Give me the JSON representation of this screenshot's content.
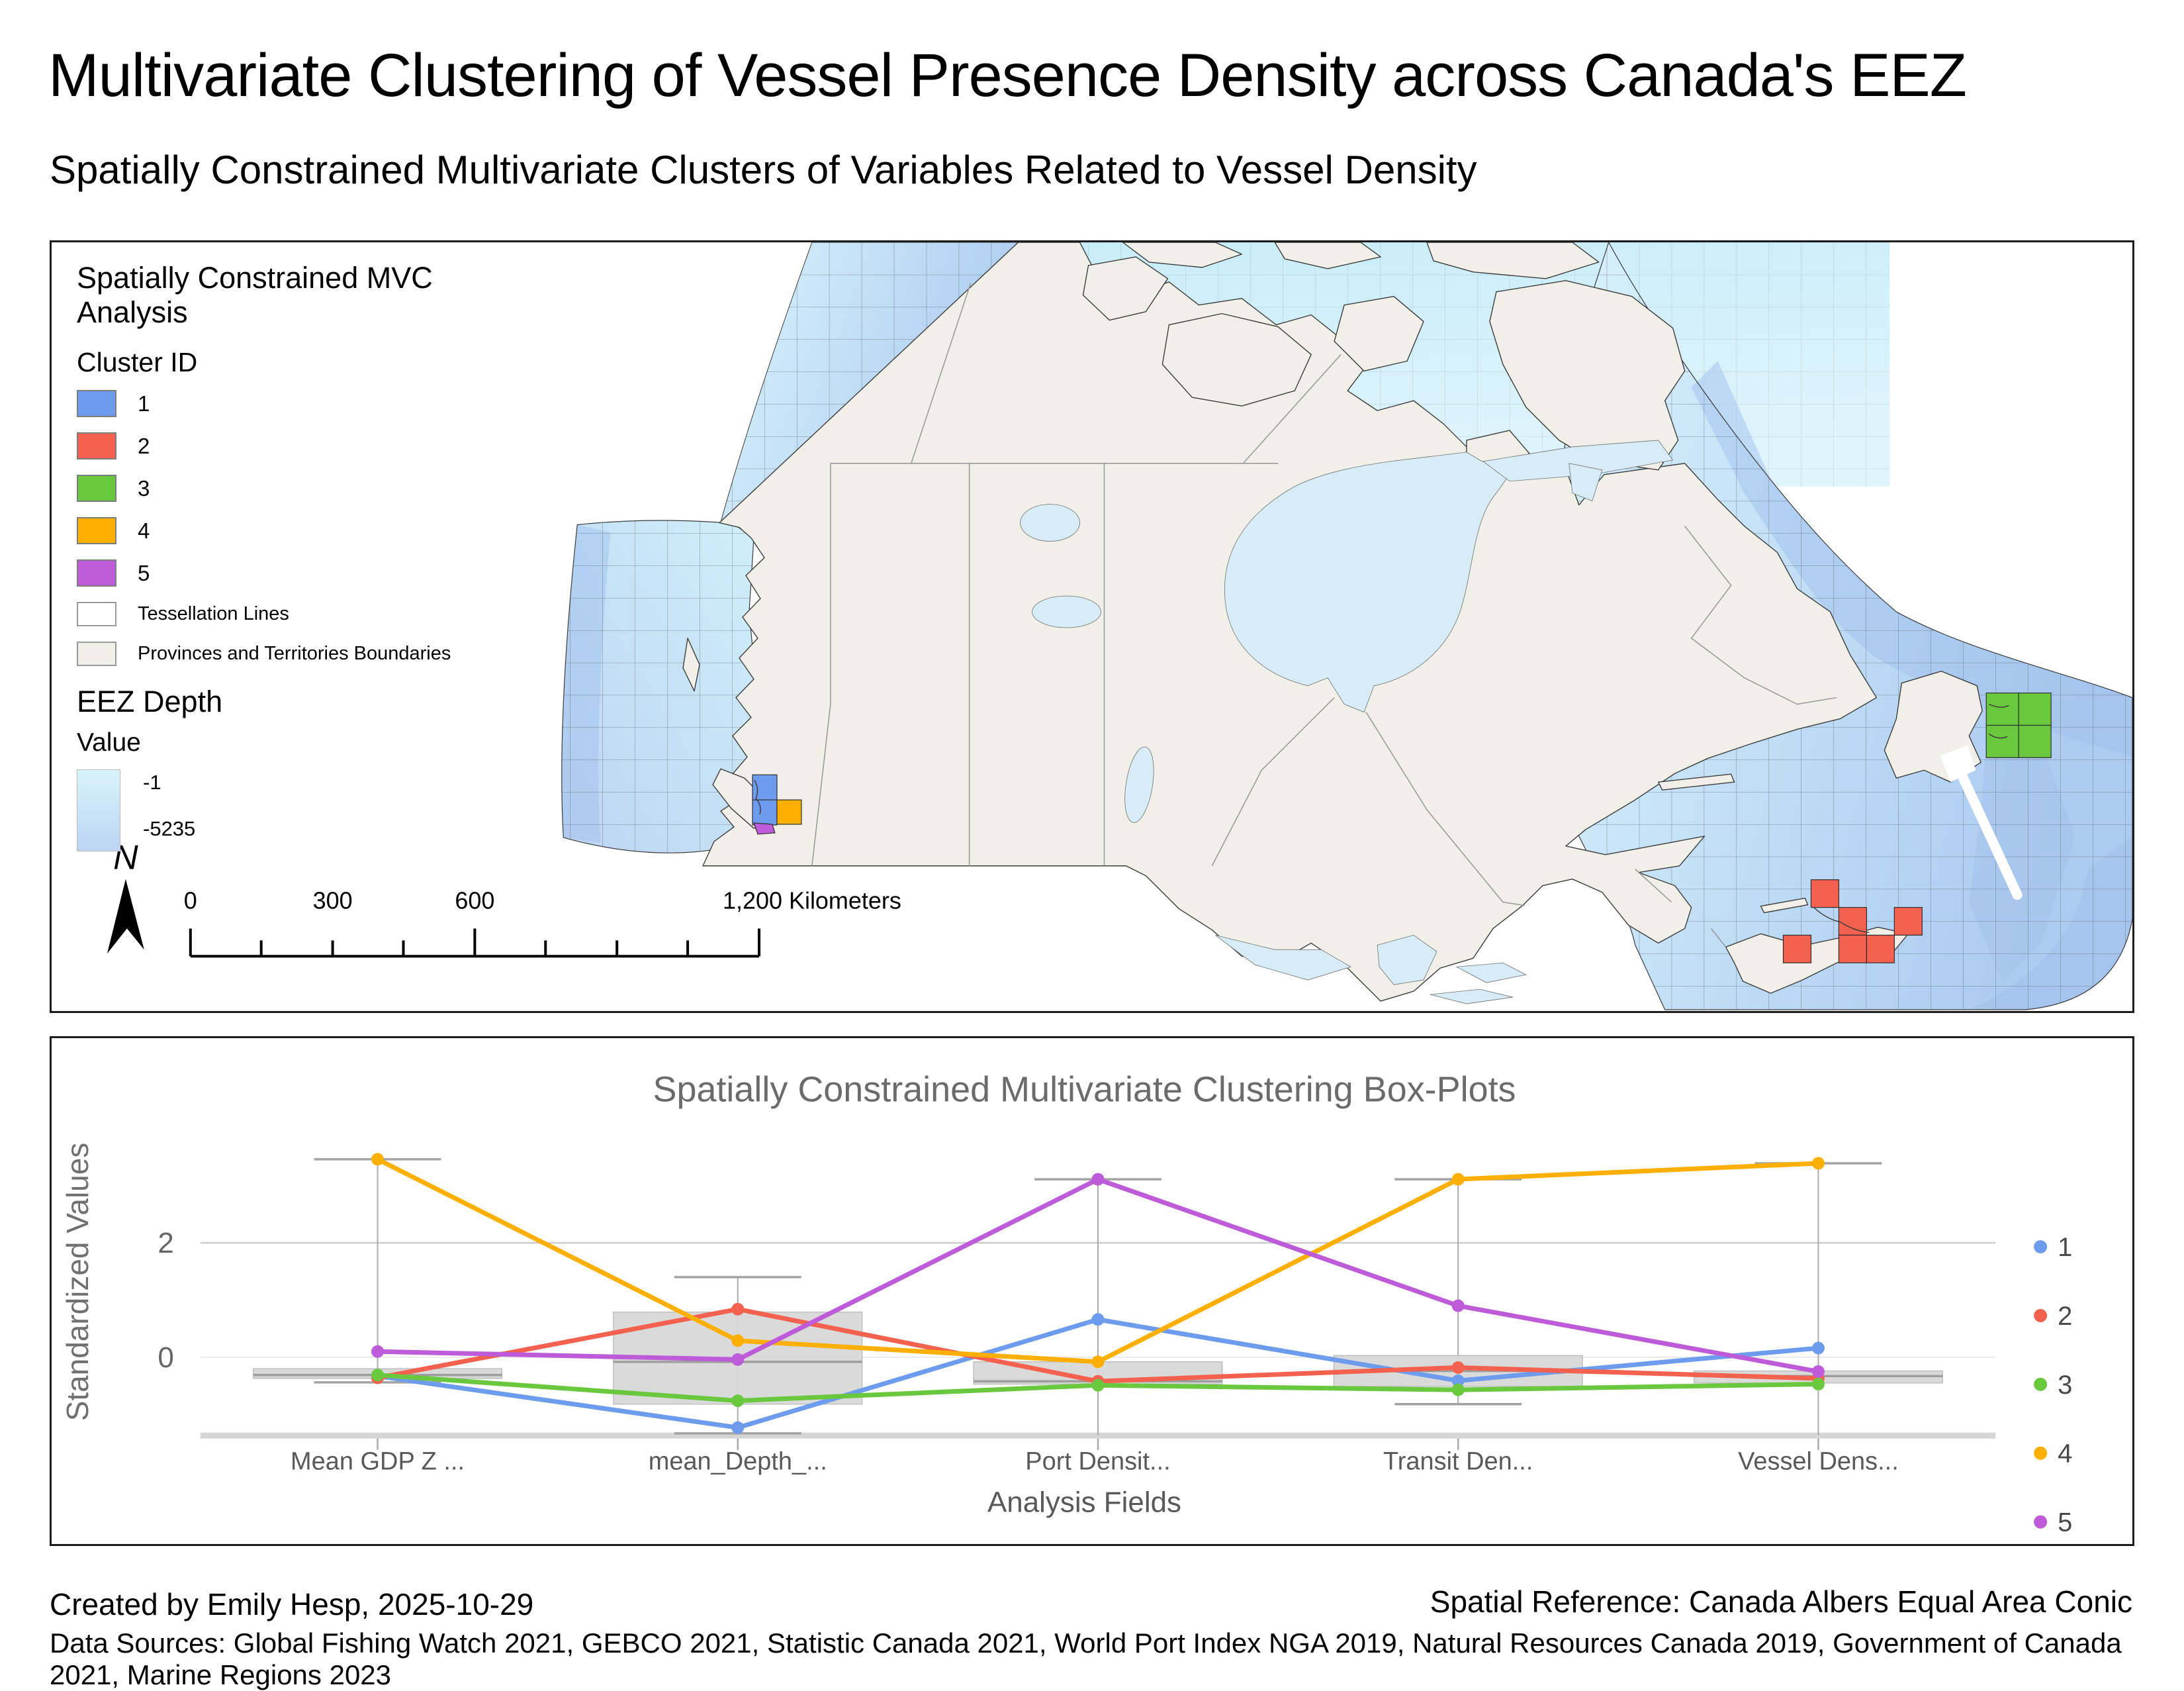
{
  "page": {
    "title": "Multivariate Clustering of Vessel Presence Density across Canada's EEZ",
    "subtitle": "Spatially Constrained Multivariate Clusters of Variables Related to Vessel Density",
    "footer": {
      "created_by": "Created by Emily Hesp, 2025-10-29",
      "spatial_reference": "Spatial Reference: Canada Albers Equal Area Conic",
      "data_sources": "Data Sources: Global Fishing Watch 2021, GEBCO 2021, Statistic Canada 2021, World Port Index NGA 2019, Natural Resources Canada 2019, Government of Canada 2021, Marine Regions 2023"
    }
  },
  "map": {
    "legend": {
      "title": "Spatially Constrained MVC Analysis",
      "cluster_group_label": "Cluster ID",
      "clusters": [
        {
          "id": "1",
          "color": "#6D9BEE"
        },
        {
          "id": "2",
          "color": "#F4614E"
        },
        {
          "id": "3",
          "color": "#6AC83F"
        },
        {
          "id": "4",
          "color": "#FFAF00"
        },
        {
          "id": "5",
          "color": "#BE5BD9"
        }
      ],
      "tessellation_label": "Tessellation Lines",
      "tessellation_swatch_color": "#FFFFFF",
      "provinces_label": "Provinces and Territories Boundaries",
      "provinces_swatch_color": "#F0EFE8",
      "eez_title": "EEZ Depth",
      "eez_value_label": "Value",
      "eez_max_label": "-1",
      "eez_min_label": "-5235",
      "eez_top_color": "#D9F3FC",
      "eez_bottom_color": "#BCD4F2"
    },
    "north_label": "N",
    "scalebar": {
      "label_0": "0",
      "label_300": "300",
      "label_600": "600",
      "label_end": "1,200 Kilometers"
    },
    "land_color": "#F0EFE8",
    "inner_water_color": "#D8ECF8"
  },
  "chart_data": {
    "type": "box-line",
    "title": "Spatially Constrained Multivariate Clustering Box-Plots",
    "xlabel": "Analysis Fields",
    "ylabel": "Standardized Values",
    "categories": [
      "Mean GDP Z ...",
      "mean_Depth_...",
      "Port Densit...",
      "Transit Den...",
      "Vessel Dens..."
    ],
    "yticks": [
      0,
      2
    ],
    "ylim": [
      -1.36,
      4.0
    ],
    "grid": "horizontal",
    "legend_position": "right",
    "series": [
      {
        "name": "1",
        "color": "#6D9BEE",
        "values": [
          -0.33,
          -1.23,
          0.66,
          -0.41,
          0.16
        ]
      },
      {
        "name": "2",
        "color": "#F4614E",
        "values": [
          -0.36,
          0.84,
          -0.42,
          -0.18,
          -0.37
        ]
      },
      {
        "name": "3",
        "color": "#6AC83F",
        "values": [
          -0.31,
          -0.76,
          -0.49,
          -0.57,
          -0.47
        ]
      },
      {
        "name": "4",
        "color": "#FFAF00",
        "values": [
          3.46,
          0.29,
          -0.08,
          3.11,
          3.39
        ]
      },
      {
        "name": "5",
        "color": "#BE5BD9",
        "values": [
          0.1,
          -0.04,
          3.11,
          0.9,
          -0.25
        ]
      }
    ],
    "boxes": [
      {
        "q1": -0.37,
        "median": -0.31,
        "q3": -0.2,
        "whisker_low": -0.44,
        "whisker_high": 3.46
      },
      {
        "q1": -0.82,
        "median": -0.08,
        "q3": 0.79,
        "whisker_low": -1.33,
        "whisker_high": 1.4
      },
      {
        "q1": -0.47,
        "median": -0.42,
        "q3": -0.08,
        "whisker_low": null,
        "whisker_high": 3.11
      },
      {
        "q1": -0.51,
        "median": -0.24,
        "q3": 0.03,
        "whisker_low": -0.82,
        "whisker_high": 3.11
      },
      {
        "q1": -0.45,
        "median": -0.33,
        "q3": -0.24,
        "whisker_low": null,
        "whisker_high": 3.39
      }
    ]
  }
}
